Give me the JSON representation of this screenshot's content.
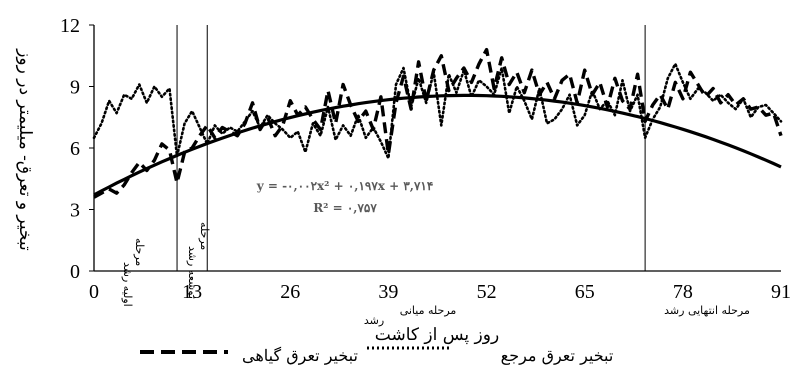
{
  "chart_data": {
    "type": "line",
    "xlabel": "روز پس از کاشت",
    "ylabel": "تبخیر و تعرق- میلیمتر در روز",
    "xlim": [
      0,
      91
    ],
    "ylim": [
      0,
      12
    ],
    "x_ticks": [
      0,
      13,
      26,
      39,
      52,
      65,
      78,
      91
    ],
    "x_tick_labels": [
      "0",
      "13",
      "26",
      "39",
      "52",
      "65",
      "78",
      "91"
    ],
    "y_ticks": [
      0,
      3,
      6,
      9,
      12
    ],
    "y_tick_labels": [
      "0",
      "3",
      "6",
      "9",
      "12"
    ],
    "stage_boundaries": [
      11,
      15,
      73
    ],
    "stages": [
      {
        "label_line1": "مرحله",
        "label_line2": "اولیه رشد"
      },
      {
        "label_line1": "مرحله",
        "label_line2": "توسعه رشد"
      },
      {
        "label_line1": "مرحله میانی",
        "label_line2": "رشد"
      },
      {
        "label_line1": "مرحله انتهایی رشد",
        "label_line2": ""
      }
    ],
    "trendline": {
      "equation": "y = -۰,۰۰۲x² + ۰,۱۹۷x + ۳,۷۱۴",
      "r2": "R² = ۰,۷۵۷",
      "coefficients": {
        "a": -0.002,
        "b": 0.197,
        "c": 3.714
      }
    },
    "series": [
      {
        "name": "تبخیر تعرق گیاهی",
        "style": "dashed",
        "x": [
          0,
          1,
          2,
          3,
          4,
          5,
          6,
          7,
          8,
          9,
          10,
          11,
          12,
          13,
          14,
          15,
          16,
          17,
          18,
          19,
          20,
          21,
          22,
          23,
          24,
          25,
          26,
          27,
          28,
          29,
          30,
          31,
          32,
          33,
          34,
          35,
          36,
          37,
          38,
          39,
          40,
          41,
          42,
          43,
          44,
          45,
          46,
          47,
          48,
          49,
          50,
          51,
          52,
          53,
          54,
          55,
          56,
          57,
          58,
          59,
          60,
          61,
          62,
          63,
          64,
          65,
          66,
          67,
          68,
          69,
          70,
          71,
          72,
          73,
          74,
          75,
          76,
          77,
          78,
          79,
          80,
          81,
          82,
          83,
          84,
          85,
          86,
          87,
          88,
          89,
          90,
          91
        ],
        "values": [
          3.6,
          3.8,
          4.0,
          3.8,
          4.2,
          4.8,
          5.3,
          4.9,
          5.4,
          6.2,
          5.9,
          4.3,
          5.8,
          6.0,
          6.6,
          7.1,
          6.5,
          7.0,
          6.8,
          6.6,
          7.2,
          8.2,
          6.9,
          7.5,
          6.6,
          7.1,
          8.3,
          7.6,
          8.0,
          7.4,
          6.9,
          8.8,
          7.2,
          9.1,
          8.1,
          7.3,
          7.8,
          6.9,
          8.5,
          5.7,
          8.2,
          9.5,
          7.9,
          10.2,
          8.3,
          9.8,
          10.5,
          8.8,
          9.4,
          9.9,
          9.2,
          10.1,
          10.8,
          8.9,
          10.4,
          9.1,
          9.7,
          8.7,
          9.8,
          8.6,
          9.2,
          8.4,
          9.3,
          9.6,
          8.2,
          9.8,
          8.6,
          9.2,
          8.0,
          9.4,
          8.3,
          7.9,
          9.6,
          7.3,
          8.1,
          8.6,
          7.9,
          9.2,
          8.4,
          9.7,
          9.1,
          8.5,
          8.9,
          8.2,
          8.6,
          8.1,
          8.4,
          7.9,
          8.0,
          7.6,
          7.7,
          6.6
        ]
      },
      {
        "name": "تبخیر تعرق مرجع",
        "style": "dotted",
        "x": [
          0,
          1,
          2,
          3,
          4,
          5,
          6,
          7,
          8,
          9,
          10,
          11,
          12,
          13,
          14,
          15,
          16,
          17,
          18,
          19,
          20,
          21,
          22,
          23,
          24,
          25,
          26,
          27,
          28,
          29,
          30,
          31,
          32,
          33,
          34,
          35,
          36,
          37,
          38,
          39,
          40,
          41,
          42,
          43,
          44,
          45,
          46,
          47,
          48,
          49,
          50,
          51,
          52,
          53,
          54,
          55,
          56,
          57,
          58,
          59,
          60,
          61,
          62,
          63,
          64,
          65,
          66,
          67,
          68,
          69,
          70,
          71,
          72,
          73,
          74,
          75,
          76,
          77,
          78,
          79,
          80,
          81,
          82,
          83,
          84,
          85,
          86,
          87,
          88,
          89,
          90,
          91
        ],
        "values": [
          6.5,
          7.2,
          8.3,
          7.7,
          8.6,
          8.4,
          9.1,
          8.2,
          9.0,
          8.5,
          8.9,
          5.6,
          7.2,
          7.8,
          7.0,
          6.2,
          7.1,
          6.7,
          7.0,
          6.8,
          7.3,
          7.8,
          7.0,
          7.6,
          7.2,
          6.9,
          6.5,
          6.8,
          5.8,
          7.2,
          6.6,
          8.0,
          6.4,
          7.1,
          6.6,
          7.6,
          6.5,
          7.0,
          6.3,
          5.5,
          9.1,
          9.9,
          8.0,
          9.4,
          8.2,
          9.7,
          7.1,
          9.6,
          8.7,
          9.8,
          8.5,
          9.3,
          9.0,
          8.6,
          9.9,
          7.7,
          9.0,
          8.3,
          7.4,
          8.9,
          7.2,
          7.4,
          7.9,
          8.6,
          7.1,
          7.6,
          8.8,
          7.9,
          8.3,
          7.6,
          9.3,
          7.8,
          8.6,
          6.5,
          7.4,
          8.0,
          9.4,
          10.1,
          9.2,
          8.4,
          8.9,
          8.7,
          8.3,
          8.6,
          8.2,
          7.9,
          8.4,
          7.5,
          8.0,
          8.1,
          7.7,
          7.3
        ]
      }
    ]
  }
}
